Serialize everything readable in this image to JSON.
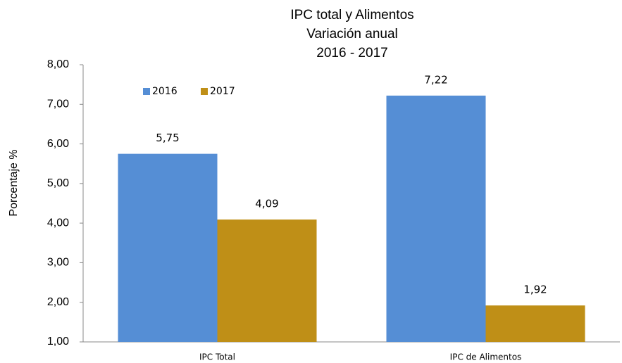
{
  "chart_data": {
    "type": "bar",
    "title": [
      "IPC total y Alimentos",
      "Variación anual",
      "2016 - 2017"
    ],
    "y_label": "Porcentaje %",
    "categories": [
      "IPC Total",
      "IPC de Alimentos"
    ],
    "series": [
      {
        "name": "2016",
        "color": "#558ed5",
        "values": [
          5.75,
          7.22
        ],
        "value_labels": [
          "5,75",
          "7,22"
        ]
      },
      {
        "name": "2017",
        "color": "#bf8f17",
        "values": [
          4.09,
          1.92
        ],
        "value_labels": [
          "4,09",
          "1,92"
        ]
      }
    ],
    "ylim": [
      1,
      8
    ],
    "yticks": [
      {
        "value": 1,
        "label": "1,00"
      },
      {
        "value": 2,
        "label": "2,00"
      },
      {
        "value": 3,
        "label": "3,00"
      },
      {
        "value": 4,
        "label": "4,00"
      },
      {
        "value": 5,
        "label": "5,00"
      },
      {
        "value": 6,
        "label": "6,00"
      },
      {
        "value": 7,
        "label": "7,00"
      },
      {
        "value": 8,
        "label": "8,00"
      }
    ],
    "grid": false,
    "legend": "top-left"
  }
}
